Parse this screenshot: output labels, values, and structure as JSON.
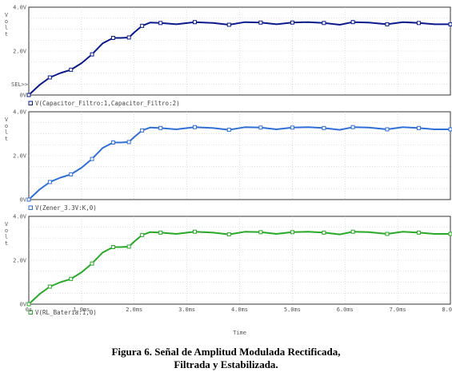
{
  "caption": {
    "line1": "Figura 6. Señal de Amplitud Modulada Rectificada,",
    "line2": "Filtrada y Estabilizada."
  },
  "chart_data": [
    {
      "type": "line",
      "ylabel": "Volt",
      "yticks": [
        "4.0V",
        "2.0V",
        "0V"
      ],
      "ylim": [
        0,
        4
      ],
      "xlim": [
        0,
        8
      ],
      "sel_marker": "SEL>>",
      "grid": true,
      "color": "#0a1a8c",
      "marker_color": "#0a1a8c",
      "series": [
        {
          "name": "V(Capacitor_Filtro:1,Capacitor_Filtro:2)",
          "x": [
            0,
            0.2,
            0.4,
            0.6,
            0.8,
            1.0,
            1.2,
            1.4,
            1.6,
            1.75,
            1.9,
            2.0,
            2.15,
            2.3,
            2.5,
            2.8,
            3.15,
            3.5,
            3.8,
            4.1,
            4.4,
            4.7,
            5.0,
            5.3,
            5.6,
            5.9,
            6.15,
            6.45,
            6.8,
            7.1,
            7.4,
            7.7,
            8.0
          ],
          "y": [
            0,
            0.45,
            0.8,
            1.0,
            1.15,
            1.45,
            1.85,
            2.35,
            2.6,
            2.6,
            2.62,
            2.85,
            3.15,
            3.3,
            3.28,
            3.22,
            3.32,
            3.28,
            3.2,
            3.32,
            3.3,
            3.22,
            3.3,
            3.32,
            3.28,
            3.2,
            3.32,
            3.3,
            3.22,
            3.32,
            3.28,
            3.22,
            3.22
          ]
        }
      ]
    },
    {
      "type": "line",
      "ylabel": "Volt",
      "yticks": [
        "4.0V",
        "2.0V",
        "0V"
      ],
      "ylim": [
        0,
        4
      ],
      "xlim": [
        0,
        8
      ],
      "grid": true,
      "color": "#2f6fd8",
      "marker_color": "#2f6fd8",
      "series": [
        {
          "name": "V(Zener_3.3V:K,0)",
          "x": [
            0,
            0.2,
            0.4,
            0.6,
            0.8,
            1.0,
            1.2,
            1.4,
            1.6,
            1.75,
            1.9,
            2.0,
            2.15,
            2.3,
            2.5,
            2.8,
            3.15,
            3.5,
            3.8,
            4.1,
            4.4,
            4.7,
            5.0,
            5.3,
            5.6,
            5.9,
            6.15,
            6.45,
            6.8,
            7.1,
            7.4,
            7.7,
            8.0
          ],
          "y": [
            0,
            0.45,
            0.8,
            1.0,
            1.15,
            1.45,
            1.85,
            2.35,
            2.6,
            2.6,
            2.62,
            2.85,
            3.15,
            3.28,
            3.26,
            3.2,
            3.3,
            3.26,
            3.18,
            3.3,
            3.28,
            3.2,
            3.28,
            3.3,
            3.26,
            3.18,
            3.3,
            3.28,
            3.2,
            3.3,
            3.26,
            3.2,
            3.2
          ]
        }
      ]
    },
    {
      "type": "line",
      "ylabel": "Volt",
      "yticks": [
        "4.0V",
        "2.0V",
        "0V"
      ],
      "ylim": [
        0,
        4
      ],
      "xlim": [
        0,
        8
      ],
      "xticks": [
        "0s",
        "1.0ms",
        "2.0ms",
        "3.0ms",
        "4.0ms",
        "5.0ms",
        "6.0ms",
        "7.0ms",
        "8.0ms"
      ],
      "xlabel": "Time",
      "grid": true,
      "color": "#29a829",
      "marker_color": "#29a829",
      "series": [
        {
          "name": "V(RL_Bateria:1,0)",
          "x": [
            0,
            0.2,
            0.4,
            0.6,
            0.8,
            1.0,
            1.2,
            1.4,
            1.6,
            1.75,
            1.9,
            2.0,
            2.15,
            2.3,
            2.5,
            2.8,
            3.15,
            3.5,
            3.8,
            4.1,
            4.4,
            4.7,
            5.0,
            5.3,
            5.6,
            5.9,
            6.15,
            6.45,
            6.8,
            7.1,
            7.4,
            7.7,
            8.0
          ],
          "y": [
            0,
            0.45,
            0.8,
            1.0,
            1.15,
            1.45,
            1.85,
            2.35,
            2.6,
            2.6,
            2.62,
            2.85,
            3.15,
            3.28,
            3.26,
            3.2,
            3.3,
            3.26,
            3.18,
            3.3,
            3.28,
            3.2,
            3.28,
            3.3,
            3.26,
            3.18,
            3.3,
            3.28,
            3.2,
            3.3,
            3.26,
            3.2,
            3.2
          ]
        }
      ]
    }
  ]
}
